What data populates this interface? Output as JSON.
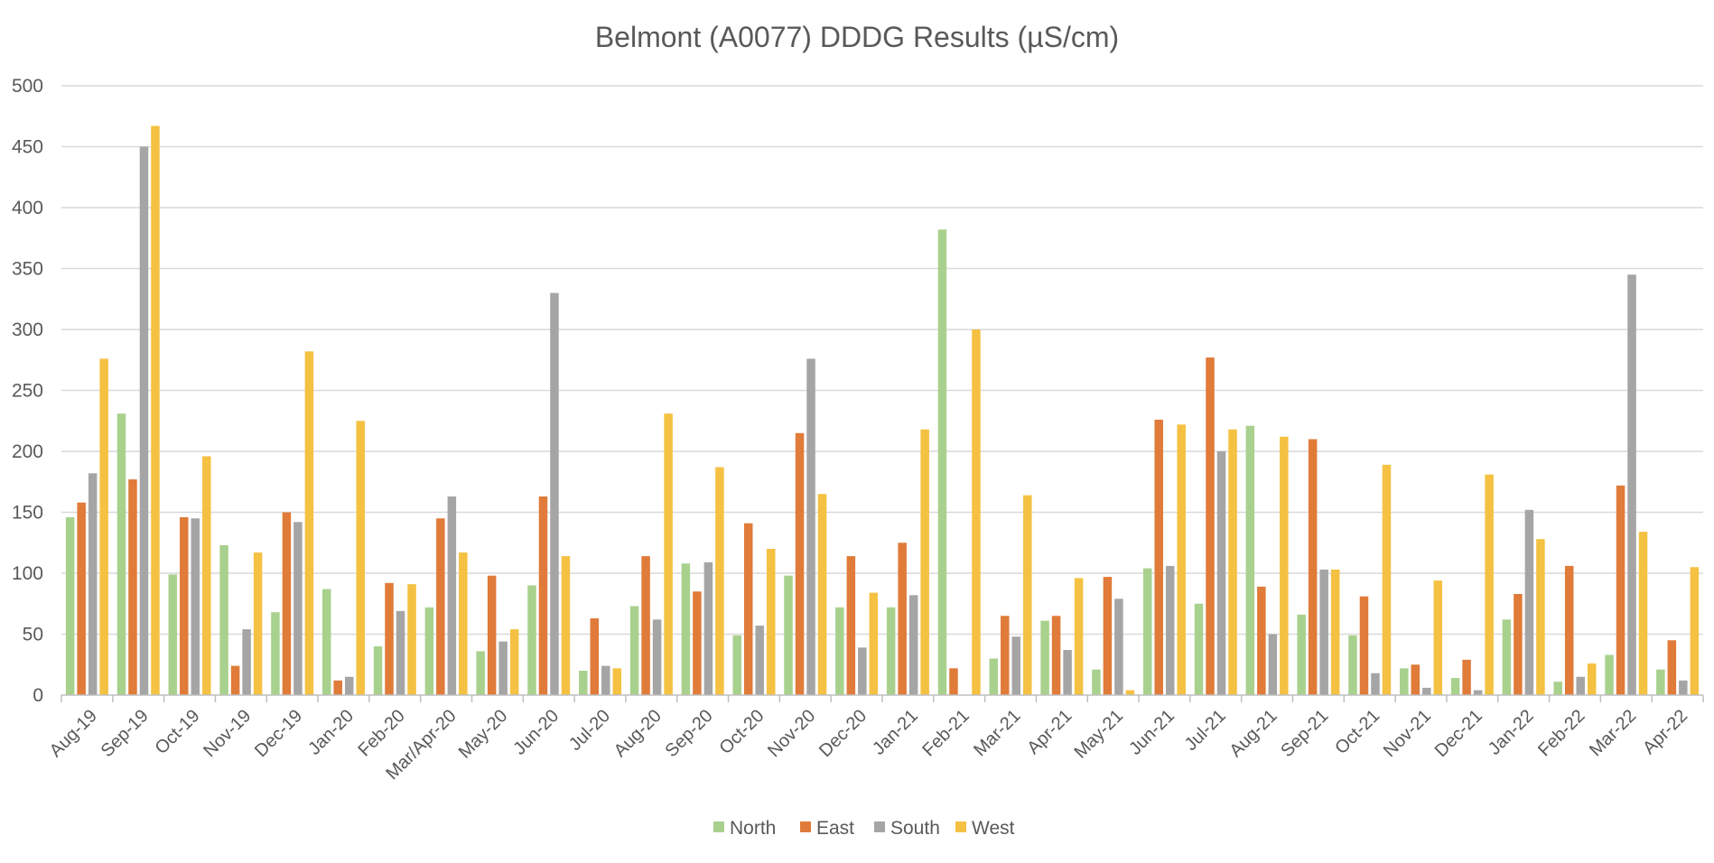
{
  "chart_data": {
    "type": "bar",
    "title": "Belmont (A0077) DDDG Results (µS/cm)",
    "xlabel": "",
    "ylabel": "",
    "ylim": [
      0,
      500
    ],
    "yticks": [
      0,
      50,
      100,
      150,
      200,
      250,
      300,
      350,
      400,
      450,
      500
    ],
    "grid": true,
    "legend_position": "bottom",
    "categories": [
      "Aug-19",
      "Sep-19",
      "Oct-19",
      "Nov-19",
      "Dec-19",
      "Jan-20",
      "Feb-20",
      "Mar/Apr-20",
      "May-20",
      "Jun-20",
      "Jul-20",
      "Aug-20",
      "Sep-20",
      "Oct-20",
      "Nov-20",
      "Dec-20",
      "Jan-21",
      "Feb-21",
      "Mar-21",
      "Apr-21",
      "May-21",
      "Jun-21",
      "Jul-21",
      "Aug-21",
      "Sep-21",
      "Oct-21",
      "Nov-21",
      "Dec-21",
      "Jan-22",
      "Feb-22",
      "Mar-22",
      "Apr-22"
    ],
    "series": [
      {
        "name": "North",
        "color": "#a9d18e",
        "values": [
          146,
          231,
          99,
          123,
          68,
          87,
          40,
          72,
          36,
          90,
          20,
          73,
          108,
          49,
          98,
          72,
          72,
          382,
          30,
          61,
          21,
          104,
          75,
          221,
          66,
          49,
          22,
          14,
          62,
          11,
          33,
          21
        ]
      },
      {
        "name": "East",
        "color": "#e07b39",
        "values": [
          158,
          177,
          146,
          24,
          150,
          12,
          92,
          145,
          98,
          163,
          63,
          114,
          85,
          141,
          215,
          114,
          125,
          22,
          65,
          65,
          97,
          226,
          277,
          89,
          210,
          81,
          25,
          29,
          83,
          106,
          172,
          45
        ]
      },
      {
        "name": "South",
        "color": "#a5a5a5",
        "values": [
          182,
          450,
          145,
          54,
          142,
          15,
          69,
          163,
          44,
          330,
          24,
          62,
          109,
          57,
          276,
          39,
          82,
          0,
          48,
          37,
          79,
          106,
          200,
          50,
          103,
          18,
          6,
          4,
          152,
          15,
          345,
          12
        ]
      },
      {
        "name": "West",
        "color": "#f5c142",
        "values": [
          276,
          467,
          196,
          117,
          282,
          225,
          91,
          117,
          54,
          114,
          22,
          231,
          187,
          120,
          165,
          84,
          218,
          300,
          164,
          96,
          4,
          222,
          218,
          212,
          103,
          189,
          94,
          181,
          128,
          26,
          134,
          105
        ]
      }
    ]
  }
}
